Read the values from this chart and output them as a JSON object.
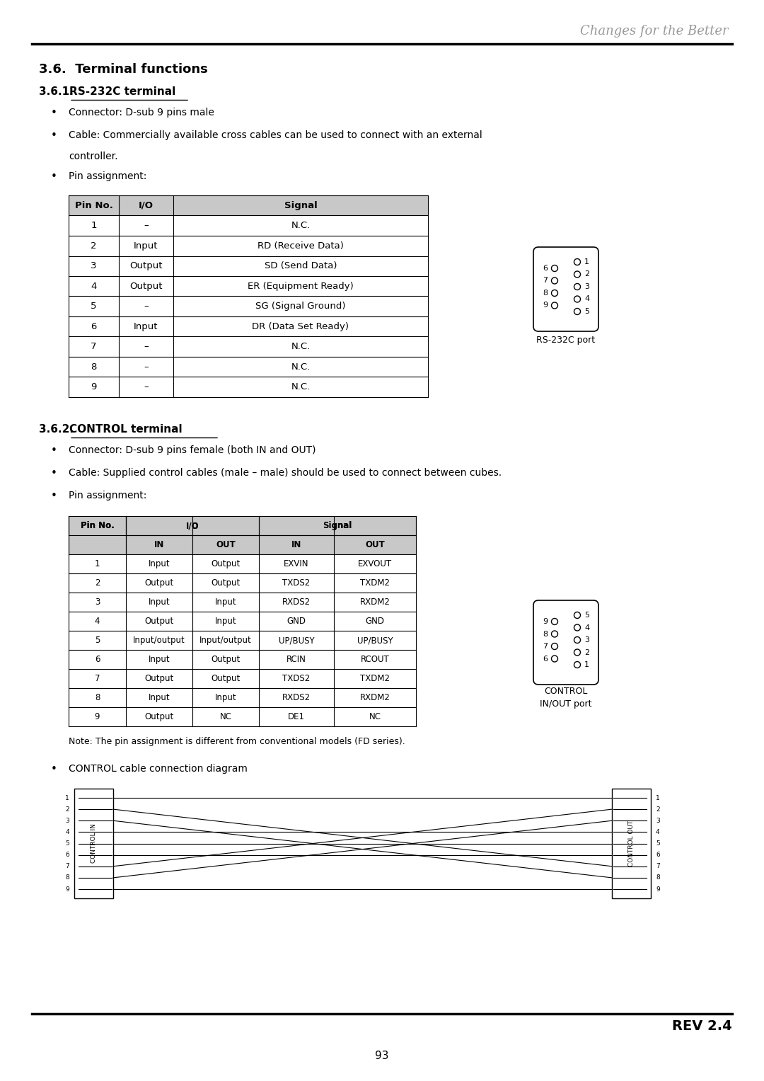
{
  "title_header": "Changes for the Better",
  "section_title": "3.6.  Terminal functions",
  "sub1_title": "3.6.1.",
  "sub1_title_text": "RS-232C terminal",
  "sub1_bullets": [
    "Connector: D-sub 9 pins male",
    "Cable: Commercially available cross cables can be used to connect with an external\ncontroller.",
    "Pin assignment:"
  ],
  "rs232_table_headers": [
    "Pin No.",
    "I/O",
    "Signal"
  ],
  "rs232_table_data": [
    [
      "1",
      "–",
      "N.C."
    ],
    [
      "2",
      "Input",
      "RD (Receive Data)"
    ],
    [
      "3",
      "Output",
      "SD (Send Data)"
    ],
    [
      "4",
      "Output",
      "ER (Equipment Ready)"
    ],
    [
      "5",
      "–",
      "SG (Signal Ground)"
    ],
    [
      "6",
      "Input",
      "DR (Data Set Ready)"
    ],
    [
      "7",
      "–",
      "N.C."
    ],
    [
      "8",
      "–",
      "N.C."
    ],
    [
      "9",
      "–",
      "N.C."
    ]
  ],
  "rs232_port_label": "RS-232C port",
  "sub2_title": "3.6.2.",
  "sub2_title_text": "CONTROL terminal",
  "sub2_bullets": [
    "Connector: D-sub 9 pins female (both IN and OUT)",
    "Cable: Supplied control cables (male – male) should be used to connect between cubes.",
    "Pin assignment:"
  ],
  "control_table_data": [
    [
      "1",
      "Input",
      "Output",
      "EXVIN",
      "EXVOUT"
    ],
    [
      "2",
      "Output",
      "Output",
      "TXDS2",
      "TXDM2"
    ],
    [
      "3",
      "Input",
      "Input",
      "RXDS2",
      "RXDM2"
    ],
    [
      "4",
      "Output",
      "Input",
      "GND",
      "GND"
    ],
    [
      "5",
      "Input/output",
      "Input/output",
      "UP/BUSY",
      "UP/BUSY"
    ],
    [
      "6",
      "Input",
      "Output",
      "RCIN",
      "RCOUT"
    ],
    [
      "7",
      "Output",
      "Output",
      "TXDS2",
      "TXDM2"
    ],
    [
      "8",
      "Input",
      "Input",
      "RXDS2",
      "RXDM2"
    ],
    [
      "9",
      "Output",
      "NC",
      "DE1",
      "NC"
    ]
  ],
  "control_port_label": [
    "CONTROL",
    "IN/OUT port"
  ],
  "note_text": "Note: The pin assignment is different from conventional models (FD series).",
  "cable_diagram_label": "CONTROL cable connection diagram",
  "page_number": "93",
  "rev_label": "REV 2.4",
  "bg_color": "#ffffff",
  "text_color": "#000000",
  "table_header_bg": "#c8c8c8",
  "table_border_color": "#000000"
}
